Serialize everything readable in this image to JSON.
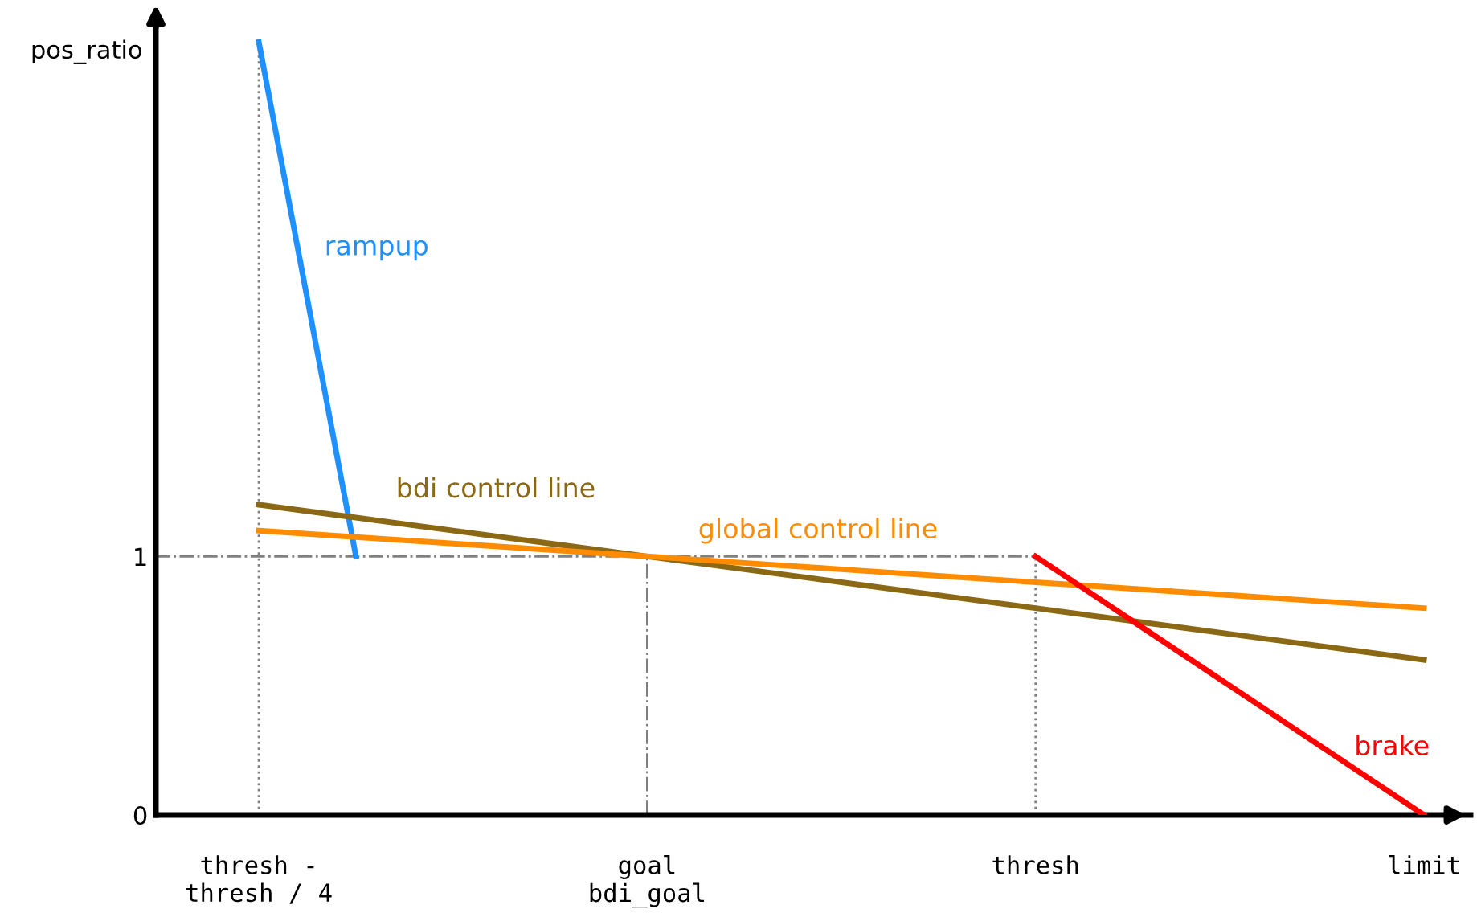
{
  "chart_data": {
    "type": "line",
    "ylabel": "pos_ratio",
    "ylim": [
      0,
      3.09
    ],
    "categories": [
      "thresh -\nthresh / 4",
      null,
      null,
      null,
      "goal\nbdi_goal",
      null,
      null,
      null,
      "thresh",
      null,
      null,
      null,
      "limit"
    ],
    "yticks": [
      0,
      1
    ],
    "grid": false,
    "legend": false,
    "series": [
      {
        "name": "rampup",
        "color": "#1e90ff",
        "values": [
          2.99,
          1,
          null,
          null,
          null,
          null,
          null,
          null,
          null,
          null,
          null,
          null,
          null
        ]
      },
      {
        "name": "bdi control line",
        "color": "#8b6914",
        "values": [
          1.2,
          1.15,
          1.1,
          1.05,
          1,
          0.95,
          0.9,
          0.85,
          0.8,
          0.75,
          0.7,
          0.65,
          0.6
        ]
      },
      {
        "name": "global control line",
        "color": "#ff8c00",
        "values": [
          1.1,
          1.075,
          1.05,
          1.025,
          1,
          0.975,
          0.95,
          0.925,
          0.9,
          0.875,
          0.85,
          0.825,
          0.8
        ]
      },
      {
        "name": "brake",
        "color": "#ff0000",
        "values": [
          null,
          null,
          null,
          null,
          null,
          null,
          null,
          null,
          1,
          0.75,
          0.5,
          0.25,
          0
        ]
      }
    ],
    "ref_lines": [
      {
        "axis": "x",
        "value": "thresh -\nthresh / 4",
        "color": "#808080",
        "line_style": "dotted"
      },
      {
        "axis": "x",
        "value": "goal\nbdi_goal",
        "color": "#808080",
        "line_style": "dashed"
      },
      {
        "axis": "x",
        "value": "thresh",
        "color": "#808080",
        "line_style": "dotted"
      },
      {
        "axis": "y",
        "value": 1,
        "color": "#808080",
        "line_style": "dashed"
      }
    ]
  }
}
